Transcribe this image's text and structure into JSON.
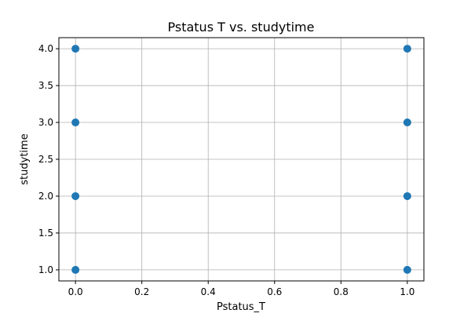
{
  "chart_data": {
    "type": "scatter",
    "title": "Pstatus T vs. studytime",
    "xlabel": "Pstatus_T",
    "ylabel": "studytime",
    "xlim": [
      -0.05,
      1.05
    ],
    "ylim": [
      0.85,
      4.15
    ],
    "xticks": [
      0.0,
      0.2,
      0.4,
      0.6,
      0.8,
      1.0
    ],
    "xtick_labels": [
      "0.0",
      "0.2",
      "0.4",
      "0.6",
      "0.8",
      "1.0"
    ],
    "yticks": [
      1.0,
      1.5,
      2.0,
      2.5,
      3.0,
      3.5,
      4.0
    ],
    "ytick_labels": [
      "1.0",
      "1.5",
      "2.0",
      "2.5",
      "3.0",
      "3.5",
      "4.0"
    ],
    "grid": true,
    "series": [
      {
        "color": "#1f77b4",
        "points": [
          {
            "x": 0,
            "y": 1
          },
          {
            "x": 0,
            "y": 2
          },
          {
            "x": 0,
            "y": 3
          },
          {
            "x": 0,
            "y": 4
          },
          {
            "x": 1,
            "y": 1
          },
          {
            "x": 1,
            "y": 2
          },
          {
            "x": 1,
            "y": 3
          },
          {
            "x": 1,
            "y": 4
          }
        ]
      }
    ]
  }
}
